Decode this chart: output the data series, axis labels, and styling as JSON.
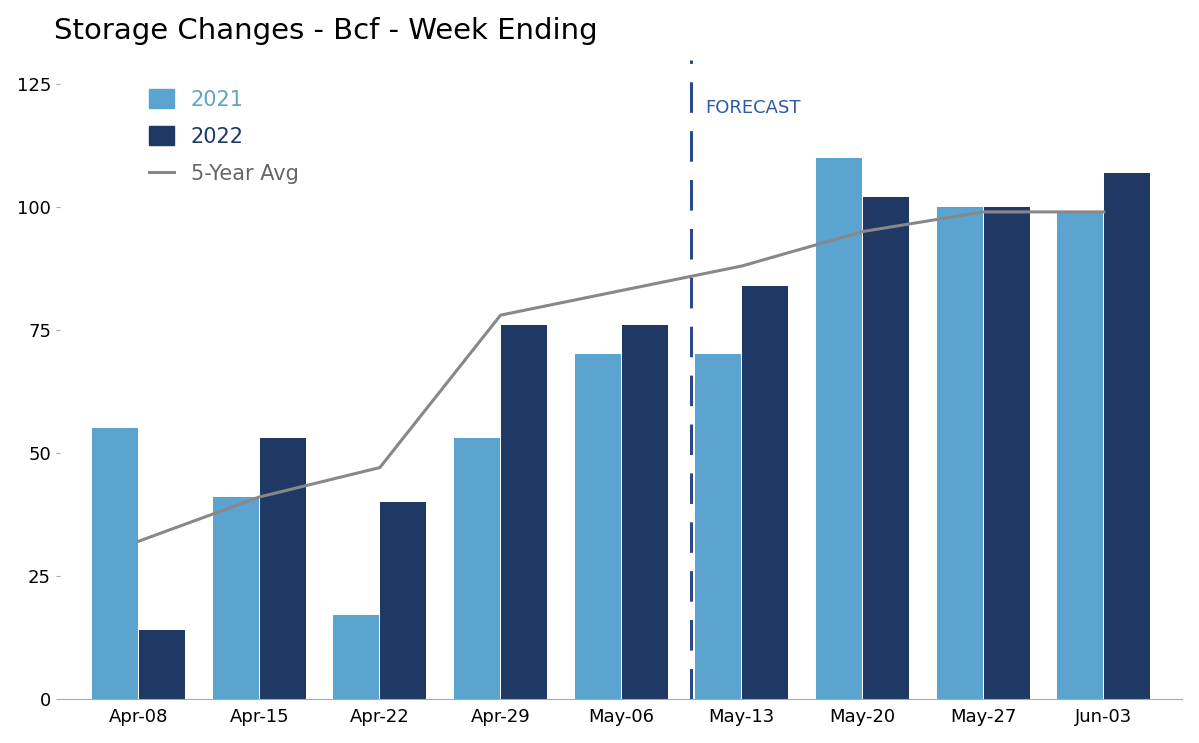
{
  "title": "Storage Changes - Bcf - Week Ending",
  "categories": [
    "Apr-08",
    "Apr-15",
    "Apr-22",
    "Apr-29",
    "May-06",
    "May-13",
    "May-20",
    "May-27",
    "Jun-03"
  ],
  "values_2021": [
    55,
    41,
    17,
    53,
    70,
    70,
    110,
    100,
    99
  ],
  "values_2022": [
    14,
    53,
    40,
    76,
    76,
    84,
    102,
    100,
    107
  ],
  "five_year_avg": [
    32,
    41,
    47,
    78,
    83,
    88,
    95,
    99,
    99
  ],
  "color_2021": "#5BA4CF",
  "color_2022": "#1F3864",
  "color_avg": "#888888",
  "color_forecast_line": "#2B4A8B",
  "color_forecast_text": "#2B5BA8",
  "forecast_after_index": 4,
  "ylim": [
    0,
    130
  ],
  "yticks": [
    0,
    25,
    50,
    75,
    100,
    125
  ],
  "legend_2021": "2021",
  "legend_2022": "2022",
  "legend_avg": "5-Year Avg",
  "forecast_label": "FORECAST",
  "background_color": "#ffffff",
  "title_fontsize": 21,
  "tick_fontsize": 13,
  "legend_fontsize": 15,
  "forecast_fontsize": 13
}
